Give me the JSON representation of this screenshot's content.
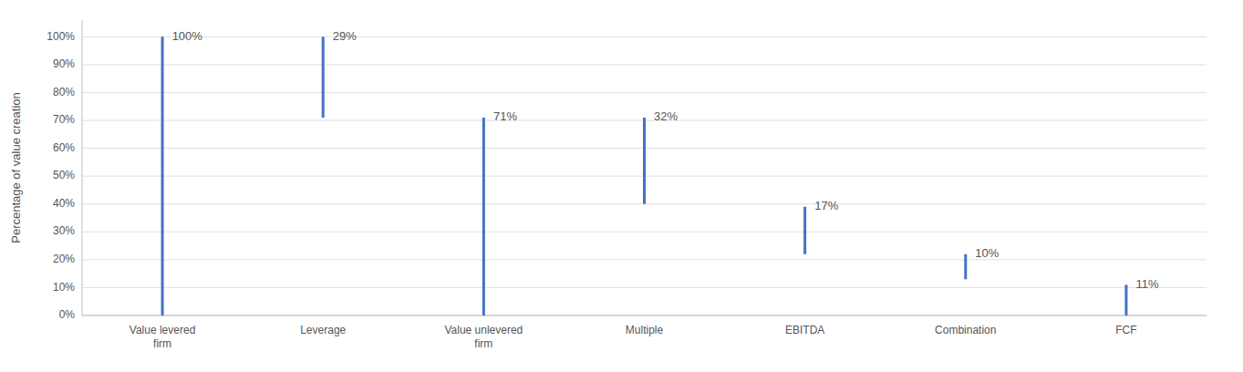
{
  "chart_data": {
    "type": "range",
    "ylabel": "Percentage of value creation",
    "categories": [
      "Value levered\nfirm",
      "Leverage",
      "Value unlevered\nfirm",
      "Multiple",
      "EBITDA",
      "Combination",
      "FCF"
    ],
    "bottoms": [
      0,
      71,
      0,
      40,
      22,
      13,
      0
    ],
    "values": [
      100,
      100,
      71,
      71,
      39,
      22,
      11
    ],
    "annotations": [
      "100%",
      "29%",
      "71%",
      "32%",
      "17%",
      "10%",
      "11%"
    ],
    "color": "#4472C4",
    "ylim": [
      0,
      106
    ],
    "yticks": [
      {
        "value": 0,
        "label": "0%"
      },
      {
        "value": 10,
        "label": "10%"
      },
      {
        "value": 20,
        "label": "20%"
      },
      {
        "value": 30,
        "label": "30%"
      },
      {
        "value": 40,
        "label": "40%"
      },
      {
        "value": 50,
        "label": "50%"
      },
      {
        "value": 60,
        "label": "60%"
      },
      {
        "value": 70,
        "label": "70%"
      },
      {
        "value": 80,
        "label": "80%"
      },
      {
        "value": 90,
        "label": "90%"
      },
      {
        "value": 100,
        "label": "100%"
      }
    ],
    "grid": true
  }
}
